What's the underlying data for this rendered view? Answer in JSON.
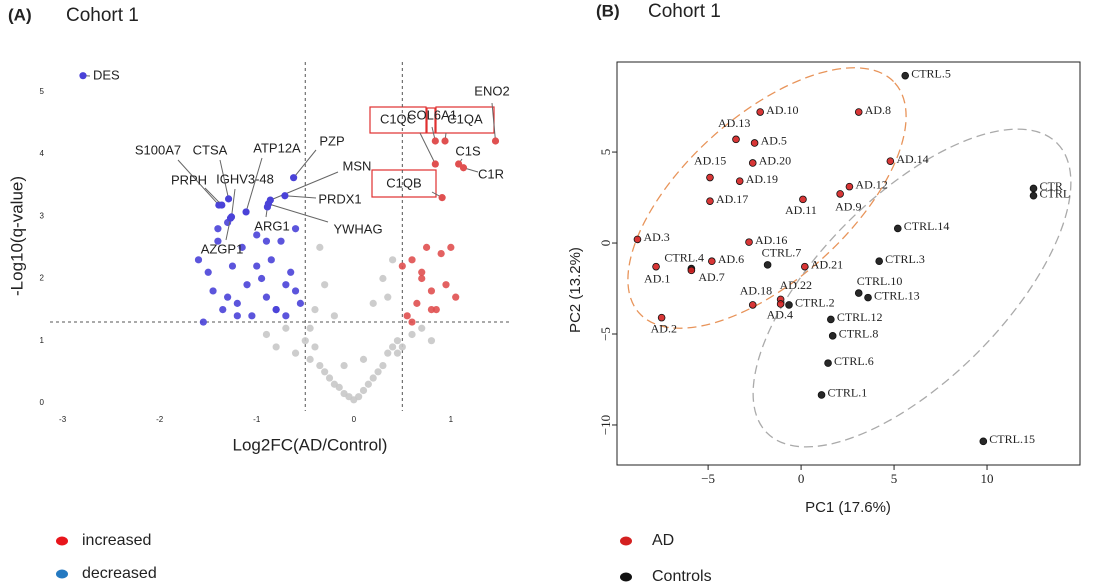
{
  "chart_data": [
    {
      "type": "scatter",
      "panel_label": "(A)",
      "title": "Cohort 1",
      "x_label": "Log2FC(AD/Control)",
      "y_label": "-Log10(q-value)",
      "xlim": [
        -3.13,
        1.63
      ],
      "ylim": [
        -0.13,
        5.48
      ],
      "xticks": [
        -3,
        -2,
        -1,
        0,
        1
      ],
      "yticks": [
        0,
        1,
        2,
        3,
        4,
        5
      ],
      "thresholds": {
        "x": [
          -0.5,
          0.5
        ],
        "y": 1.3
      },
      "series": [
        {
          "name": "increased",
          "color": "#e05050",
          "legend_color": "#e8151b",
          "x": [
            0.5,
            0.55,
            0.6,
            0.65,
            0.7,
            0.75,
            0.8,
            0.85,
            0.9,
            0.95,
            1.0,
            1.05,
            0.6,
            0.7,
            0.8
          ],
          "y": [
            2.2,
            1.4,
            2.3,
            1.6,
            2.0,
            2.5,
            1.8,
            1.5,
            2.4,
            1.9,
            2.5,
            1.7,
            1.3,
            2.1,
            1.5
          ]
        },
        {
          "name": "decreased",
          "color": "#4a42d8",
          "legend_color": "#2479c1",
          "x": [
            -1.55,
            -1.5,
            -1.45,
            -1.4,
            -1.35,
            -1.3,
            -1.25,
            -1.2,
            -1.15,
            -1.1,
            -1.05,
            -1.0,
            -0.95,
            -0.9,
            -0.85,
            -0.8,
            -0.75,
            -0.7,
            -0.65,
            -0.6,
            -0.55,
            -1.6,
            -1.4,
            -1.2,
            -1.0,
            -0.8,
            -0.6,
            -1.3,
            -0.9,
            -0.7
          ],
          "y": [
            1.3,
            2.1,
            1.8,
            2.6,
            1.5,
            2.9,
            2.2,
            1.6,
            2.5,
            1.9,
            1.4,
            2.7,
            2.0,
            1.7,
            2.3,
            1.5,
            2.6,
            1.9,
            2.1,
            2.8,
            1.6,
            2.3,
            2.8,
            1.4,
            2.2,
            1.5,
            1.8,
            1.7,
            2.6,
            1.4
          ]
        },
        {
          "color": "#c8c8c8",
          "x": [
            -0.9,
            -0.8,
            -0.7,
            -0.6,
            -0.5,
            -0.45,
            -0.4,
            -0.35,
            -0.3,
            -0.25,
            -0.2,
            -0.15,
            -0.1,
            -0.05,
            0,
            0.05,
            0.1,
            0.15,
            0.2,
            0.25,
            0.3,
            0.35,
            0.4,
            0.45,
            0.5,
            0.6,
            0.7,
            0.8,
            -0.4,
            -0.3,
            -0.2,
            -0.1,
            0.1,
            0.2,
            0.3,
            0.4,
            -0.35,
            0.35,
            -0.45,
            0.45
          ],
          "y": [
            1.1,
            0.9,
            1.2,
            0.8,
            1.0,
            0.7,
            0.9,
            0.6,
            0.5,
            0.4,
            0.3,
            0.25,
            0.15,
            0.1,
            0.05,
            0.1,
            0.2,
            0.3,
            0.4,
            0.5,
            0.6,
            0.8,
            0.9,
            1.0,
            0.9,
            1.1,
            1.2,
            1.0,
            1.5,
            1.9,
            1.4,
            0.6,
            0.7,
            1.6,
            2.0,
            2.3,
            2.5,
            1.7,
            1.2,
            0.8
          ]
        }
      ],
      "annotations": [
        {
          "label": "DES",
          "x": -2.79,
          "y": 5.26
        },
        {
          "label": "S100A7",
          "x": -1.39,
          "y": 3.18
        },
        {
          "label": "PRPH",
          "x": -1.36,
          "y": 3.18
        },
        {
          "label": "CTSA",
          "x": -1.29,
          "y": 3.28
        },
        {
          "label": "IGHV3-48",
          "x": -1.26,
          "y": 2.99
        },
        {
          "label": "ATP12A",
          "x": -1.11,
          "y": 3.07
        },
        {
          "label": "AZGP1",
          "x": -1.27,
          "y": 2.97
        },
        {
          "label": "ARG1",
          "x": -0.89,
          "y": 3.15
        },
        {
          "label": "PZP",
          "x": -0.62,
          "y": 3.62
        },
        {
          "label": "MSN",
          "x": -0.86,
          "y": 3.26
        },
        {
          "label": "PRDX1",
          "x": -0.71,
          "y": 3.33
        },
        {
          "label": "YWHAG",
          "x": -0.88,
          "y": 3.2
        },
        {
          "label": "COL6A1",
          "x": 0.84,
          "y": 4.21
        },
        {
          "label": "ENO2",
          "x": 1.46,
          "y": 4.21
        },
        {
          "label": "C1QC",
          "x": 0.84,
          "y": 3.84
        },
        {
          "label": "C1QA",
          "x": 0.94,
          "y": 4.21
        },
        {
          "label": "C1S",
          "x": 1.08,
          "y": 3.84
        },
        {
          "label": "C1R",
          "x": 1.13,
          "y": 3.78
        },
        {
          "label": "C1QB",
          "x": 0.91,
          "y": 3.3
        }
      ]
    },
    {
      "type": "scatter",
      "panel_label": "(B)",
      "title": "Cohort 1",
      "x_label": "PC1 (17.6%)",
      "y_label": "PC2 (13.2%)",
      "xlim": [
        -9.9,
        15.0
      ],
      "ylim": [
        -12.2,
        9.95
      ],
      "xticks": [
        {
          "value": -5,
          "label": "−5"
        },
        0,
        5,
        10
      ],
      "yticks": [
        {
          "value": -10,
          "label": "−10"
        },
        {
          "value": -5,
          "label": "−5"
        },
        0,
        5
      ],
      "frame": true,
      "series": [
        {
          "name": "AD",
          "color": "#d42020",
          "labels": [
            "AD.10",
            "AD.8",
            "AD.13",
            "AD.5",
            "AD.20",
            "AD.15",
            "AD.19",
            "AD.14",
            "AD.12",
            "AD.9",
            "AD.11",
            "AD.17",
            "AD.3",
            "AD.16",
            "AD.6",
            "AD.1",
            "AD.7",
            "AD.21",
            "AD.18",
            "AD.22",
            "AD.4",
            "AD.2"
          ],
          "x": [
            -2.2,
            3.1,
            -3.5,
            -2.5,
            -2.6,
            -4.9,
            -3.3,
            4.8,
            2.6,
            2.1,
            0.1,
            -4.9,
            -8.8,
            -2.8,
            -4.8,
            -7.8,
            -5.9,
            0.2,
            -2.6,
            -1.1,
            -1.1,
            -7.5
          ],
          "y": [
            7.2,
            7.2,
            5.7,
            5.5,
            4.4,
            3.6,
            3.4,
            4.5,
            3.1,
            2.7,
            2.4,
            2.3,
            0.2,
            0.05,
            -1.0,
            -1.3,
            -1.5,
            -1.3,
            -3.4,
            -3.1,
            -3.35,
            -4.1
          ]
        },
        {
          "name": "Controls",
          "color": "#111111",
          "labels": [
            "CTRL.5",
            "CTR",
            "CTRL",
            "CTRL.14",
            "CTRL.3",
            "CTRL.7",
            "CTRL.4",
            "CTRL.10",
            "CTRL.13",
            "CTRL.2",
            "CTRL.12",
            "CTRL.8",
            "CTRL.6",
            "CTRL.1",
            "CTRL.15"
          ],
          "x": [
            5.6,
            12.5,
            12.5,
            5.2,
            4.2,
            -1.8,
            -5.9,
            3.1,
            3.6,
            -0.65,
            1.6,
            1.7,
            1.45,
            1.1,
            9.8
          ],
          "y": [
            9.2,
            3.0,
            2.6,
            0.8,
            -1.0,
            -1.2,
            -1.4,
            -2.75,
            -3.0,
            -3.4,
            -4.2,
            -5.1,
            -6.6,
            -8.35,
            -10.9
          ]
        }
      ]
    }
  ]
}
